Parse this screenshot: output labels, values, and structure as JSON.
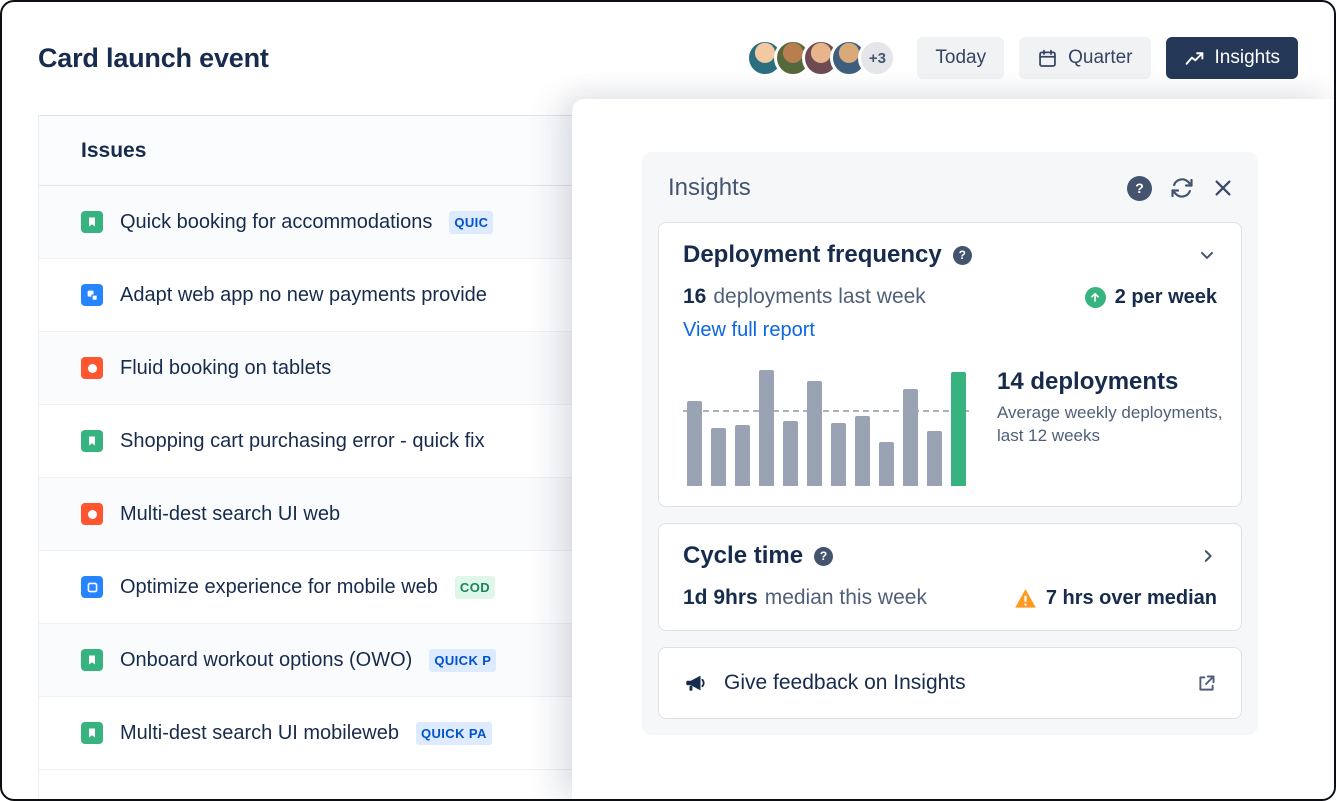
{
  "page": {
    "title": "Card launch event"
  },
  "header": {
    "overflow_count": "+3",
    "today_label": "Today",
    "quarter_label": "Quarter",
    "insights_label": "Insights",
    "avatars": [
      {
        "face": "#F2C9A1",
        "bg": "#2B6E7F"
      },
      {
        "face": "#B97E50",
        "bg": "#55683B"
      },
      {
        "face": "#E8B48C",
        "bg": "#6E4A52"
      },
      {
        "face": "#D9A878",
        "bg": "#3E5E7E"
      }
    ]
  },
  "issues": {
    "header": "Issues",
    "items": [
      {
        "type": "story",
        "title": "Quick booking for accommodations",
        "badge": "QUIC",
        "badge_style": "blue"
      },
      {
        "type": "subtask",
        "title": "Adapt web app no new payments provide"
      },
      {
        "type": "bug",
        "title": "Fluid booking on tablets"
      },
      {
        "type": "story",
        "title": "Shopping cart purchasing error - quick fix"
      },
      {
        "type": "bug",
        "title": "Multi-dest search UI web"
      },
      {
        "type": "task",
        "title": "Optimize experience for mobile web",
        "badge": "COD",
        "badge_style": "green"
      },
      {
        "type": "story",
        "title": "Onboard workout options (OWO)",
        "badge": "QUICK P",
        "badge_style": "blue"
      },
      {
        "type": "story",
        "title": "Multi-dest search UI mobileweb",
        "badge": "QUICK PA",
        "badge_style": "blue"
      }
    ]
  },
  "insights": {
    "title": "Insights",
    "icons": {
      "help_glyph": "?"
    },
    "deployment_card": {
      "title": "Deployment frequency",
      "metric_value": "16",
      "metric_label": "deployments last week",
      "trend_value": "2 per week",
      "link_label": "View full report",
      "stat_value": "14 deployments",
      "stat_caption": "Average weekly deployments, last 12 weeks"
    },
    "cycle_card": {
      "title": "Cycle time",
      "metric_value": "1d 9hrs",
      "metric_label": "median this week",
      "warning_text": "7 hrs over median"
    },
    "feedback_card": {
      "label": "Give feedback on Insights"
    }
  },
  "colors": {
    "primary_text": "#172B4D",
    "secondary_text": "#505F79",
    "link_blue": "#0C66E4",
    "success_green": "#36B37E",
    "warning_orange": "#FF991F",
    "insights_button_bg": "#253858"
  },
  "chart_data": {
    "type": "bar",
    "represents": "weekly deployments, last 12 weeks (relative bar heights, %)",
    "values": [
      72,
      49,
      52,
      98,
      55,
      89,
      53,
      59,
      37,
      82,
      47,
      97
    ],
    "bar_color": "#9AA3B3",
    "highlight_color": "#36B37E",
    "average_line_pct": 63,
    "grid": false,
    "legend": "none"
  }
}
